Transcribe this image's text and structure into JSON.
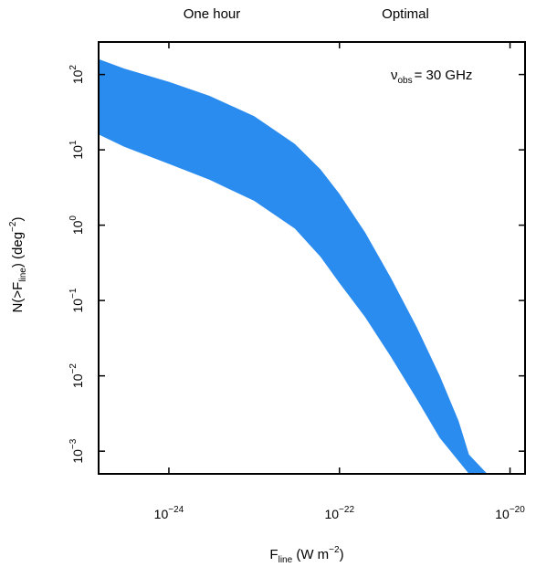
{
  "chart_data": {
    "type": "area",
    "top_labels": [
      "One hour",
      "Optimal"
    ],
    "annotation": {
      "symbol": "ν",
      "sub": "obs",
      "text": "= 30 GHz"
    },
    "xlabel": {
      "main": "F",
      "sub": "line",
      "rest": " (W m",
      "sup": "−2",
      "close": ")"
    },
    "ylabel": {
      "pre": "N(>F",
      "sub": "line",
      "mid": ") (deg",
      "sup": "−2",
      "close": ")"
    },
    "x_scale": "log",
    "y_scale": "log",
    "xlim": [
      1.5e-25,
      1.5e-20
    ],
    "ylim": [
      0.0005,
      270
    ],
    "x_ticks": [
      {
        "base": "10",
        "exp": "−24",
        "value": 1e-24
      },
      {
        "base": "10",
        "exp": "−22",
        "value": 1e-22
      },
      {
        "base": "10",
        "exp": "−20",
        "value": 1e-20
      }
    ],
    "y_ticks": [
      {
        "base": "10",
        "exp": "−3",
        "value": 0.001
      },
      {
        "base": "10",
        "exp": "−2",
        "value": 0.01
      },
      {
        "base": "10",
        "exp": "−1",
        "value": 0.1
      },
      {
        "base": "10",
        "exp": "0",
        "value": 1
      },
      {
        "base": "10",
        "exp": "1",
        "value": 10
      },
      {
        "base": "10",
        "exp": "2",
        "value": 100
      }
    ],
    "band_color": "#2b8cf0",
    "band": {
      "x": [
        1.5e-25,
        3e-25,
        1e-24,
        3e-24,
        1e-23,
        3e-23,
        6e-23,
        1e-22,
        2e-22,
        4e-22,
        8e-22,
        1.5e-21,
        2.5e-21,
        3.3e-21,
        4.5e-21,
        5.4e-21
      ],
      "upper": [
        160,
        120,
        80,
        52,
        28,
        12,
        5.5,
        2.6,
        0.8,
        0.2,
        0.045,
        0.01,
        0.0025,
        0.0009,
        null,
        null
      ],
      "lower": [
        16,
        11,
        6.5,
        4,
        2.1,
        0.9,
        0.38,
        0.17,
        0.06,
        0.018,
        0.005,
        0.0015,
        null,
        null,
        null,
        null
      ],
      "upper_end_x": 5.4e-21,
      "lower_end_x": 3.3e-21
    }
  }
}
